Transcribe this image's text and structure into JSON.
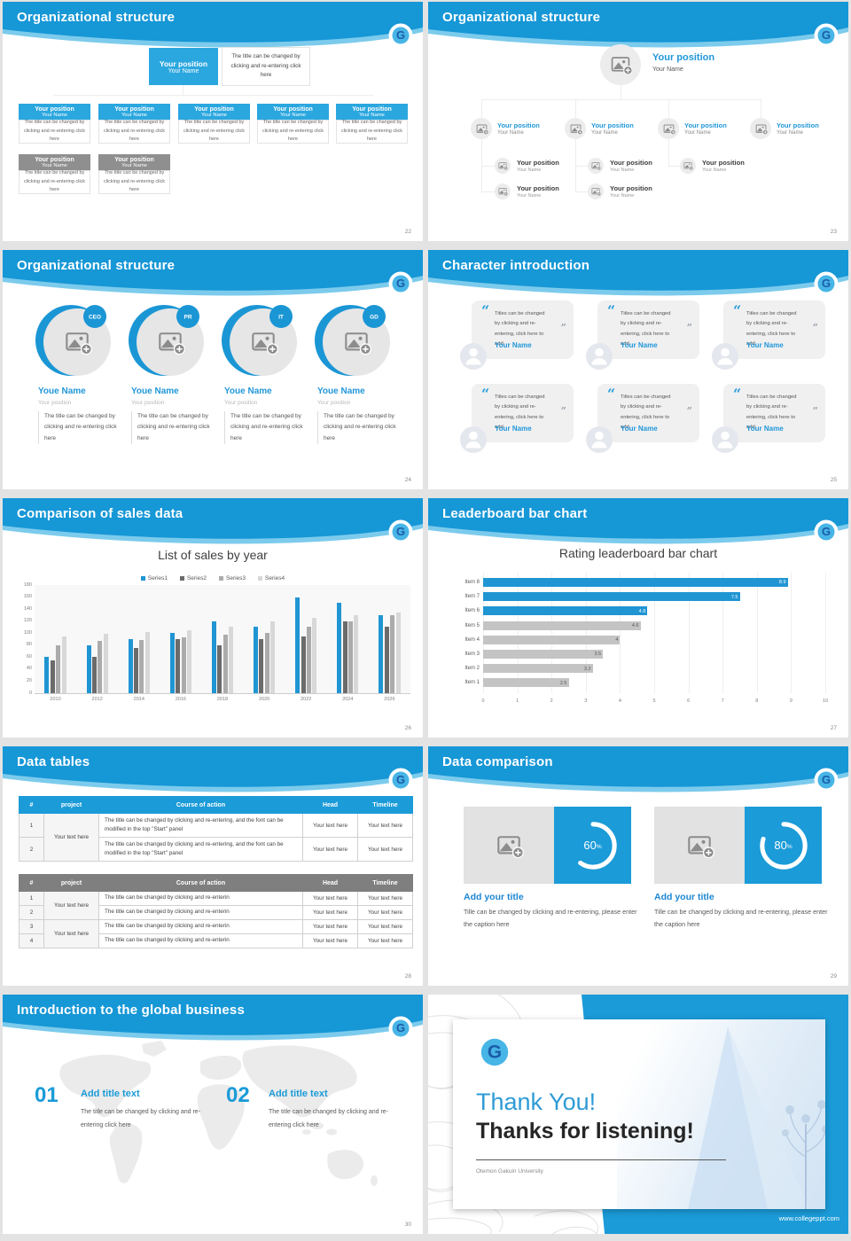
{
  "meta": {
    "accent_blue": "#1B9BD8",
    "header_blue": "#1697D6",
    "header_light_blue": "#7CCBEC",
    "box_blue": "#2BA7DF",
    "box_gray": "#8F8F8F",
    "chart_blue": "#2095D3",
    "logo_letter": "G"
  },
  "slides": [
    {
      "title": "Organizational structure",
      "page": "22",
      "note": "The title can be changed by clicking and re-entering click here",
      "root": {
        "position": "Your position",
        "name": "Your Name"
      },
      "blue_boxes": [
        {
          "position": "Your position",
          "name": "Your Name"
        },
        {
          "position": "Your position",
          "name": "Your Name"
        },
        {
          "position": "Your position",
          "name": "Your Name"
        },
        {
          "position": "Your position",
          "name": "Your Name"
        },
        {
          "position": "Your position",
          "name": "Your Name"
        }
      ],
      "gray_boxes": [
        {
          "position": "Your position",
          "name": "Your Name"
        },
        {
          "position": "Your position",
          "name": "Your Name"
        }
      ]
    },
    {
      "title": "Organizational structure",
      "page": "23",
      "root": {
        "position": "Your position",
        "name": "Your Name"
      },
      "level2": [
        {
          "position": "Your position",
          "name": "Your Name"
        },
        {
          "position": "Your position",
          "name": "Your Name"
        },
        {
          "position": "Your position",
          "name": "Your Name"
        },
        {
          "position": "Your position",
          "name": "Your Name"
        }
      ],
      "level3": [
        {
          "position": "Your position",
          "name": "Your Name"
        },
        {
          "position": "Your position",
          "name": "Your Name"
        },
        {
          "position": "Your position",
          "name": "Your Name"
        }
      ],
      "level4": [
        {
          "position": "Your position",
          "name": "Your Name"
        },
        {
          "position": "Your position",
          "name": "Your Name"
        }
      ]
    },
    {
      "title": "Organizational structure",
      "page": "24",
      "desc": "The title can be changed by clicking and re-entering click here",
      "items": [
        {
          "badge": "CEO",
          "name": "Youe Name",
          "position": "Your position"
        },
        {
          "badge": "PR",
          "name": "Youe Name",
          "position": "Your position"
        },
        {
          "badge": "IT",
          "name": "Youe Name",
          "position": "Your position"
        },
        {
          "badge": "GD",
          "name": "Youe Name",
          "position": "Your position"
        }
      ]
    },
    {
      "title": "Character introduction",
      "page": "25",
      "quote": "Titles can be changed by clicking and re-entering, click here to add",
      "name": "Your Name"
    },
    {
      "title": "Comparison of sales data",
      "page": "26",
      "chart_data": {
        "type": "bar",
        "title": "List of sales by year",
        "xlabel": "",
        "ylabel": "",
        "ylim": [
          0,
          180
        ],
        "ytick_step": 20,
        "legend_position": "top",
        "grid": false,
        "categories": [
          "2010",
          "2012",
          "2014",
          "2016",
          "2018",
          "2020",
          "2022",
          "2024",
          "2026"
        ],
        "series": [
          {
            "name": "Series1",
            "color": "#2095D3",
            "values": [
              60,
              80,
              90,
              100,
              120,
              110,
              160,
              150,
              130
            ]
          },
          {
            "name": "Series2",
            "color": "#6B6B6B",
            "values": [
              55,
              60,
              75,
              90,
              80,
              90,
              95,
              120,
              110
            ]
          },
          {
            "name": "Series3",
            "color": "#ABABAB",
            "values": [
              80,
              87,
              88,
              93,
              97,
              100,
              110,
              120,
              130
            ]
          },
          {
            "name": "Series4",
            "color": "#D8D8D8",
            "values": [
              95,
              99,
              102,
              105,
              110,
              120,
              125,
              130,
              135
            ]
          }
        ]
      }
    },
    {
      "title": "Leaderboard bar chart",
      "page": "27",
      "chart_data": {
        "type": "bar",
        "orientation": "horizontal",
        "title": "Rating leaderboard bar chart",
        "xlim": [
          0,
          10
        ],
        "xticks": [
          "0",
          "1",
          "2",
          "3",
          "4",
          "5",
          "6",
          "7",
          "8",
          "9",
          "10"
        ],
        "grid": true,
        "items": [
          "Item 8",
          "Item 7",
          "Item 6",
          "Item 5",
          "Item 4",
          "Item 3",
          "Item 2",
          "Item 1"
        ],
        "values": [
          8.9,
          7.5,
          4.8,
          4.6,
          4,
          3.5,
          3.2,
          2.5
        ],
        "value_labels": [
          "8.9",
          "7.5",
          "4.8",
          "4.6",
          "4",
          "3.5",
          "3.2",
          "2.5"
        ],
        "colors": [
          "#2095D3",
          "#2095D3",
          "#2095D3",
          "#C4C4C4",
          "#C4C4C4",
          "#C4C4C4",
          "#C4C4C4",
          "#C4C4C4"
        ]
      }
    },
    {
      "title": "Data tables",
      "page": "28",
      "table1": {
        "headers": [
          "#",
          "project",
          "Course of action",
          "Head",
          "Timeline"
        ],
        "row_numbers": [
          "1",
          "2"
        ],
        "project_cell": "Your text here",
        "action_text": "The title can be changed by clicking and re-entering, and the font can be modified in the top \"Start\" panel",
        "cell_text": "Your text here"
      },
      "table2": {
        "headers": [
          "#",
          "project",
          "Course of action",
          "Head",
          "Timeline"
        ],
        "row_numbers": [
          "1",
          "2",
          "3",
          "4"
        ],
        "project_cell": "Your text here",
        "action_text": "The title can be changed by clicking and re-enterin",
        "cell_text": "Your text here"
      }
    },
    {
      "title": "Data comparison",
      "page": "29",
      "panels": [
        {
          "percent": 60,
          "percent_label": "60",
          "percent_symbol": "%",
          "heading": "Add your title",
          "caption": "Tille can be changed by clicking and re-entering, please enter the caption here"
        },
        {
          "percent": 80,
          "percent_label": "80",
          "percent_symbol": "%",
          "heading": "Add your title",
          "caption": "Tille can be changed by clicking and re-entering, please enter the caption here"
        }
      ]
    },
    {
      "title": "Introduction to the global business",
      "page": "30",
      "items": [
        {
          "number": "01",
          "heading": "Add title text",
          "body": "The title can be changed by clicking and re-entering click here"
        },
        {
          "number": "02",
          "heading": "Add title text",
          "body": "The title can be changed by clicking and re-entering click here"
        }
      ]
    },
    {
      "main_title": "Thank You!",
      "subtitle": "Thanks for listening!",
      "organization": "Otemon Gakuin University",
      "website": "www.collegeppt.com"
    }
  ]
}
